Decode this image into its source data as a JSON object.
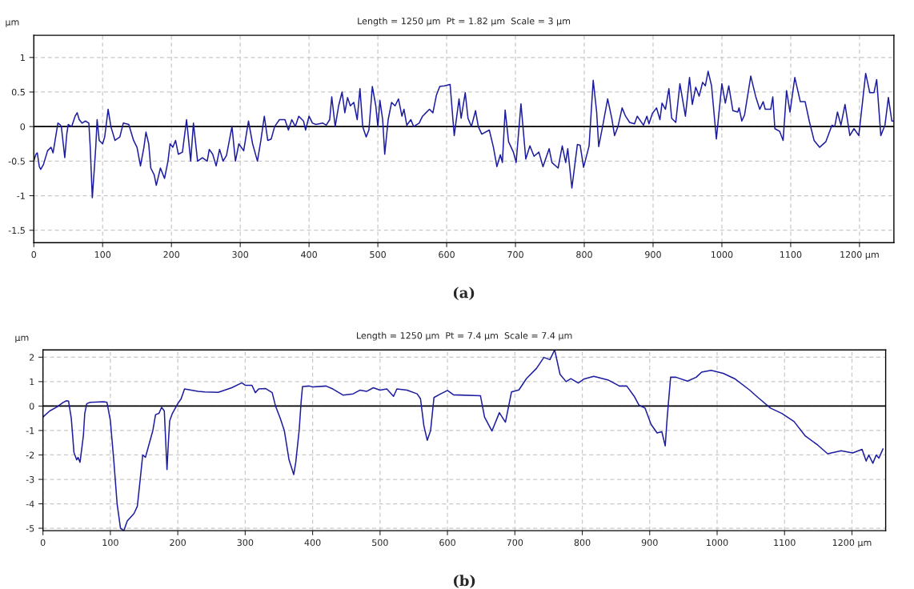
{
  "chart_data": [
    {
      "type": "line",
      "title": "Length = 1250 µm  Pt = 1.82 µm  Scale = 3 µm",
      "ylabel": "µm",
      "annotations": [
        "(a)"
      ],
      "xlim": [
        0,
        1250
      ],
      "ylim": [
        -1.68,
        1.32
      ],
      "xticks": [
        0,
        100,
        200,
        300,
        400,
        500,
        600,
        700,
        800,
        900,
        1000,
        1100,
        {
          "value": 1200,
          "label": "1200 µm"
        }
      ],
      "yticks": [
        -1.5,
        -1,
        -0.5,
        0,
        0.5,
        1
      ],
      "grid": true,
      "line_style": "solid",
      "marker": "none",
      "ref_lines": [
        {
          "axis": "y",
          "value": 0,
          "color": "#000000"
        }
      ],
      "series": [
        {
          "color": "#1c1ca0",
          "x": [
            0,
            3,
            5,
            8,
            10,
            14,
            20,
            25,
            28,
            35,
            38,
            40,
            45,
            48,
            50,
            55,
            60,
            63,
            66,
            70,
            75,
            80,
            82,
            85,
            88,
            90,
            92,
            95,
            100,
            103,
            108,
            112,
            118,
            125,
            130,
            138,
            145,
            150,
            155,
            160,
            163,
            167,
            170,
            175,
            178,
            184,
            190,
            195,
            198,
            202,
            206,
            210,
            216,
            222,
            225,
            228,
            232,
            238,
            245,
            252,
            255,
            260,
            265,
            270,
            275,
            280,
            288,
            293,
            298,
            305,
            312,
            318,
            325,
            330,
            335,
            340,
            345,
            350,
            357,
            365,
            370,
            375,
            380,
            385,
            392,
            395,
            400,
            405,
            410,
            420,
            425,
            430,
            433,
            438,
            443,
            448,
            452,
            456,
            460,
            465,
            470,
            474,
            478,
            483,
            487,
            492,
            497,
            500,
            503,
            507,
            510,
            515,
            520,
            525,
            530,
            535,
            538,
            542,
            548,
            552,
            560,
            565,
            570,
            575,
            580,
            585,
            590,
            597,
            605,
            611,
            618,
            621,
            627,
            631,
            636,
            642,
            646,
            651,
            662,
            668,
            673,
            678,
            681,
            685,
            690,
            697,
            701,
            708,
            715,
            721,
            727,
            734,
            740,
            749,
            753,
            762,
            768,
            773,
            776,
            782,
            790,
            794,
            799,
            807,
            813,
            818,
            821,
            827,
            834,
            840,
            844,
            849,
            855,
            860,
            866,
            873,
            877,
            886,
            891,
            894,
            899,
            905,
            910,
            913,
            918,
            923,
            927,
            933,
            939,
            947,
            953,
            957,
            962,
            967,
            972,
            976,
            980,
            985,
            992,
            1000,
            1005,
            1010,
            1016,
            1023,
            1025,
            1029,
            1033,
            1042,
            1049,
            1055,
            1060,
            1063,
            1071,
            1074,
            1077,
            1084,
            1089,
            1094,
            1099,
            1106,
            1114,
            1121,
            1127,
            1134,
            1142,
            1151,
            1160,
            1164,
            1168,
            1173,
            1179,
            1186,
            1192,
            1199,
            1209,
            1215,
            1221,
            1225,
            1231,
            1237,
            1242,
            1247,
            1250
          ],
          "values": [
            -0.5,
            -0.4,
            -0.38,
            -0.58,
            -0.62,
            -0.55,
            -0.35,
            -0.3,
            -0.38,
            0.05,
            0.03,
            0,
            -0.45,
            -0.1,
            0.03,
            0,
            0.15,
            0.2,
            0.1,
            0.05,
            0.08,
            0.05,
            -0.3,
            -1.03,
            -0.6,
            -0.3,
            0.1,
            -0.2,
            -0.25,
            -0.15,
            0.25,
            0,
            -0.2,
            -0.15,
            0.05,
            0.03,
            -0.2,
            -0.3,
            -0.57,
            -0.3,
            -0.08,
            -0.25,
            -0.6,
            -0.7,
            -0.85,
            -0.6,
            -0.75,
            -0.5,
            -0.25,
            -0.3,
            -0.2,
            -0.4,
            -0.37,
            0.1,
            -0.2,
            -0.5,
            0.05,
            -0.5,
            -0.45,
            -0.5,
            -0.33,
            -0.4,
            -0.57,
            -0.33,
            -0.5,
            -0.42,
            0,
            -0.5,
            -0.25,
            -0.35,
            0.08,
            -0.25,
            -0.5,
            -0.2,
            0.15,
            -0.2,
            -0.18,
            0,
            0.1,
            0.1,
            -0.05,
            0.1,
            0,
            0.15,
            0.08,
            -0.05,
            0.15,
            0.05,
            0.03,
            0.05,
            0.02,
            0.1,
            0.43,
            0,
            0.3,
            0.5,
            0.2,
            0.42,
            0.3,
            0.35,
            0.1,
            0.55,
            0,
            -0.15,
            -0.05,
            0.58,
            0.3,
            0,
            0.38,
            0.1,
            -0.4,
            0.1,
            0.35,
            0.3,
            0.4,
            0.15,
            0.25,
            0.02,
            0.1,
            0,
            0.05,
            0.15,
            0.2,
            0.25,
            0.2,
            0.45,
            0.58,
            0.59,
            0.61,
            -0.13,
            0.4,
            0.12,
            0.49,
            0.12,
            0,
            0.23,
            0,
            -0.11,
            -0.05,
            -0.3,
            -0.58,
            -0.41,
            -0.52,
            0.24,
            -0.22,
            -0.37,
            -0.52,
            0.33,
            -0.47,
            -0.28,
            -0.43,
            -0.37,
            -0.58,
            -0.32,
            -0.52,
            -0.6,
            -0.28,
            -0.52,
            -0.32,
            -0.89,
            -0.26,
            -0.27,
            -0.59,
            -0.28,
            0.67,
            0.21,
            -0.29,
            0.02,
            0.4,
            0.12,
            -0.13,
            0,
            0.27,
            0.15,
            0.06,
            0.04,
            0.15,
            0.02,
            0.15,
            0.04,
            0.19,
            0.27,
            0.1,
            0.34,
            0.25,
            0.55,
            0.12,
            0.06,
            0.62,
            0.15,
            0.71,
            0.32,
            0.57,
            0.44,
            0.64,
            0.59,
            0.8,
            0.59,
            -0.18,
            0.62,
            0.34,
            0.59,
            0.23,
            0.21,
            0.27,
            0.08,
            0.17,
            0.73,
            0.44,
            0.25,
            0.36,
            0.25,
            0.25,
            0.43,
            -0.03,
            -0.07,
            -0.2,
            0.52,
            0.21,
            0.71,
            0.36,
            0.36,
            0.08,
            -0.2,
            -0.3,
            -0.22,
            0.02,
            0,
            0.21,
            0.02,
            0.32,
            -0.13,
            -0.03,
            -0.13,
            0.77,
            0.49,
            0.49,
            0.68,
            -0.13,
            0.02,
            0.42,
            0.08,
            0.08
          ]
        }
      ]
    },
    {
      "type": "line",
      "title": "Length = 1250 µm  Pt = 7.4 µm  Scale = 7.4 µm",
      "ylabel": "µm",
      "annotations": [
        "(b)"
      ],
      "xlim": [
        0,
        1250
      ],
      "ylim": [
        -5.1,
        2.3
      ],
      "xticks": [
        0,
        100,
        200,
        300,
        400,
        500,
        600,
        700,
        800,
        900,
        1000,
        1100,
        {
          "value": 1200,
          "label": "1200 µm"
        }
      ],
      "yticks": [
        -5,
        -4,
        -3,
        -2,
        -1,
        0,
        1,
        2
      ],
      "grid": true,
      "line_style": "solid",
      "marker": "none",
      "ref_lines": [
        {
          "axis": "y",
          "value": 0,
          "color": "#000000"
        }
      ],
      "series": [
        {
          "color": "#1c1ca0",
          "x": [
            0,
            10,
            20,
            30,
            35,
            38,
            42,
            46,
            50,
            52,
            55,
            60,
            62,
            65,
            70,
            90,
            95,
            100,
            105,
            110,
            115,
            120,
            125,
            135,
            140,
            145,
            148,
            152,
            158,
            163,
            167,
            172,
            176,
            180,
            181,
            183,
            184,
            186,
            188,
            192,
            200,
            205,
            210,
            220,
            230,
            240,
            260,
            280,
            295,
            300,
            310,
            315,
            320,
            330,
            340,
            345,
            352,
            358,
            365,
            372,
            375,
            380,
            383,
            385,
            395,
            400,
            420,
            430,
            445,
            460,
            470,
            480,
            490,
            500,
            510,
            520,
            525,
            540,
            555,
            560,
            565,
            570,
            575,
            580,
            590,
            600,
            609,
            649,
            655,
            666,
            677,
            686,
            695,
            706,
            717,
            732,
            743,
            752,
            759,
            767,
            776,
            783,
            794,
            802,
            817,
            839,
            855,
            866,
            877,
            884,
            893,
            902,
            911,
            918,
            923,
            926,
            931,
            939,
            956,
            969,
            977,
            991,
            1009,
            1026,
            1048,
            1061,
            1079,
            1096,
            1114,
            1131,
            1149,
            1164,
            1184,
            1201,
            1215,
            1221,
            1225,
            1231,
            1236,
            1240,
            1246
          ],
          "values": [
            -0.45,
            -0.2,
            -0.05,
            0.15,
            0.22,
            0.2,
            -0.5,
            -1.9,
            -2.2,
            -2.1,
            -2.3,
            -1.2,
            -0.3,
            0.1,
            0.15,
            0.18,
            0.15,
            -0.6,
            -2.2,
            -4,
            -5,
            -5.1,
            -4.7,
            -4.4,
            -4.1,
            -2.8,
            -2,
            -2.1,
            -1.5,
            -1,
            -0.35,
            -0.3,
            -0.05,
            -0.2,
            -0.8,
            -2,
            -2.6,
            -1.5,
            -0.6,
            -0.3,
            0.1,
            0.3,
            0.7,
            0.65,
            0.6,
            0.58,
            0.56,
            0.75,
            0.95,
            0.85,
            0.85,
            0.55,
            0.7,
            0.72,
            0.55,
            0,
            -0.5,
            -1,
            -2.2,
            -2.8,
            -2.3,
            -1,
            0.2,
            0.8,
            0.82,
            0.78,
            0.82,
            0.7,
            0.45,
            0.5,
            0.65,
            0.6,
            0.75,
            0.65,
            0.7,
            0.4,
            0.7,
            0.65,
            0.5,
            0.3,
            -0.8,
            -1.4,
            -1,
            0.35,
            0.5,
            0.64,
            0.46,
            0.42,
            -0.45,
            -1.02,
            -0.27,
            -0.66,
            0.58,
            0.66,
            1.12,
            1.54,
            1.99,
            1.9,
            2.3,
            1.3,
            1,
            1.12,
            0.94,
            1.1,
            1.22,
            1.06,
            0.82,
            0.82,
            0.4,
            0.04,
            -0.08,
            -0.75,
            -1.1,
            -1.05,
            -1.63,
            -0.45,
            1.18,
            1.18,
            1.02,
            1.18,
            1.39,
            1.46,
            1.34,
            1.12,
            0.66,
            0.34,
            -0.08,
            -0.3,
            -0.63,
            -1.23,
            -1.59,
            -1.95,
            -1.83,
            -1.92,
            -1.77,
            -2.25,
            -2,
            -2.34,
            -2,
            -2.13,
            -1.75
          ]
        }
      ]
    }
  ]
}
